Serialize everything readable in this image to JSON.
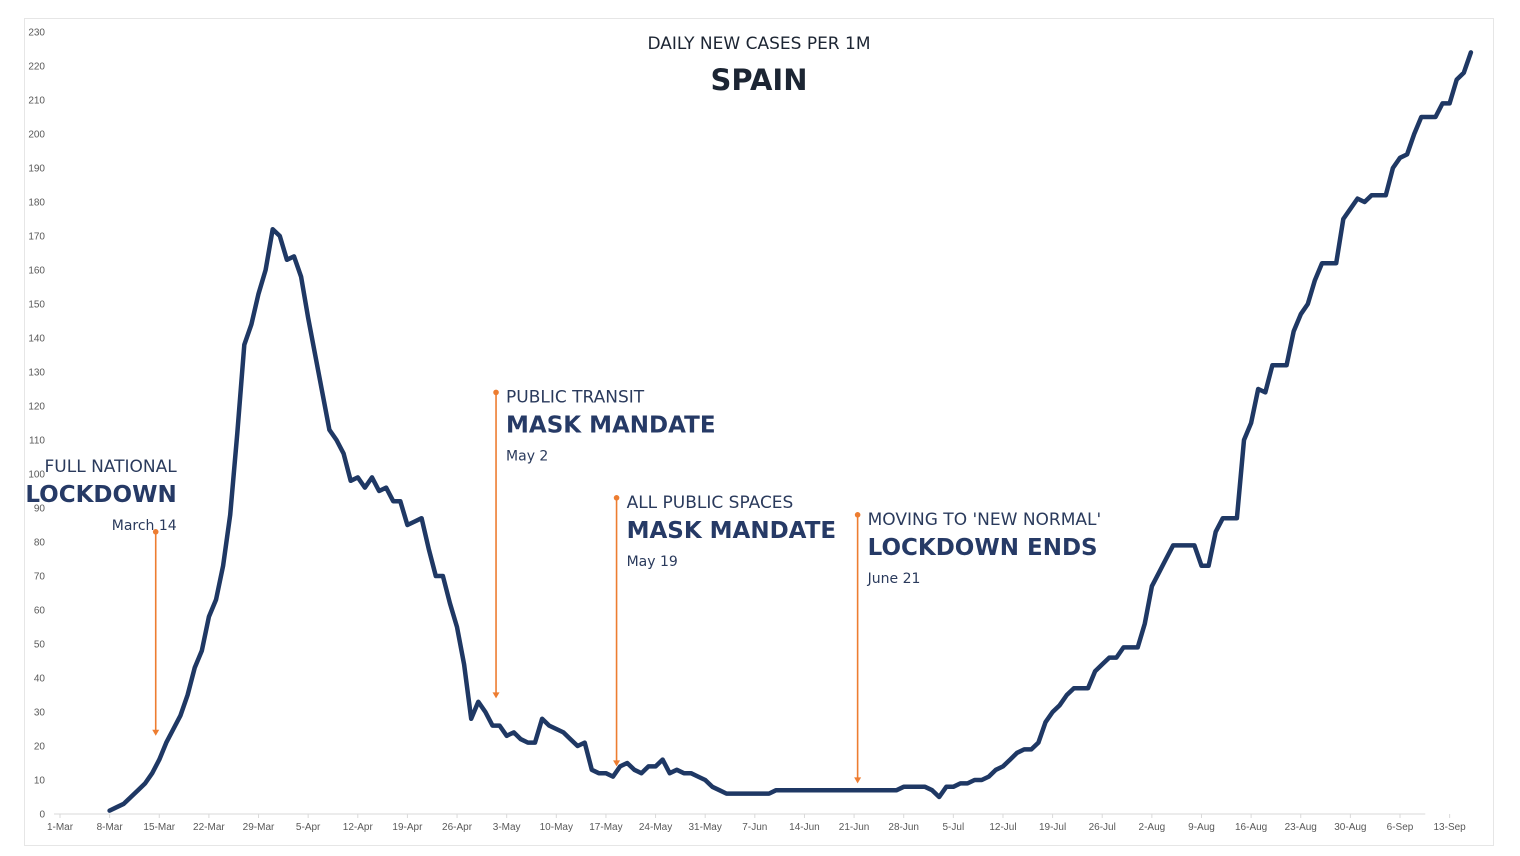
{
  "chart_data": {
    "type": "line",
    "title": "DAILY NEW CASES PER 1M",
    "subtitle": "SPAIN",
    "xlabel": "",
    "ylabel": "",
    "ylim": [
      0,
      230
    ],
    "yticks": [
      0,
      10,
      20,
      30,
      40,
      50,
      60,
      70,
      80,
      90,
      100,
      110,
      120,
      130,
      140,
      150,
      160,
      170,
      180,
      190,
      200,
      210,
      220,
      230
    ],
    "xticks": [
      "1-Mar",
      "8-Mar",
      "15-Mar",
      "22-Mar",
      "29-Mar",
      "5-Apr",
      "12-Apr",
      "19-Apr",
      "26-Apr",
      "3-May",
      "10-May",
      "17-May",
      "24-May",
      "31-May",
      "7-Jun",
      "14-Jun",
      "21-Jun",
      "28-Jun",
      "5-Jul",
      "12-Jul",
      "19-Jul",
      "26-Jul",
      "2-Aug",
      "9-Aug",
      "16-Aug",
      "23-Aug",
      "30-Aug",
      "6-Sep",
      "13-Sep"
    ],
    "x_start": "1-Mar",
    "grid": false,
    "line_color": "#1f3864",
    "annotation_color": "#ed7d31",
    "series": [
      {
        "values": [
          1,
          2,
          3,
          5,
          7,
          9,
          12,
          16,
          21,
          25,
          29,
          35,
          43,
          48,
          58,
          63,
          73,
          88,
          112,
          138,
          144,
          153,
          160,
          172,
          170,
          163,
          164,
          158,
          146,
          135,
          124,
          113,
          110,
          106,
          98,
          99,
          96,
          99,
          95,
          96,
          92,
          92,
          85,
          86,
          87,
          78,
          70,
          70,
          62,
          55,
          44,
          28,
          33,
          30,
          26,
          26,
          23,
          24,
          22,
          21,
          21,
          28,
          26,
          25,
          24,
          22,
          20,
          21,
          13,
          12,
          12,
          11,
          14,
          15,
          13,
          12,
          14,
          14,
          16,
          12,
          13,
          12,
          12,
          11,
          10,
          8,
          7,
          6,
          6,
          6,
          6,
          6,
          6,
          6,
          7,
          7,
          7,
          7,
          7,
          7,
          7,
          7,
          7,
          7,
          7,
          7,
          7,
          7,
          7,
          7,
          7,
          7,
          8,
          8,
          8,
          8,
          7,
          5,
          8,
          8,
          9,
          9,
          10,
          10,
          11,
          13,
          14,
          16,
          18,
          19,
          19,
          21,
          27,
          30,
          32,
          35,
          37,
          37,
          37,
          42,
          44,
          46,
          46,
          49,
          49,
          49,
          56,
          67,
          71,
          75,
          79,
          79,
          79,
          79,
          73,
          73,
          83,
          87,
          87,
          87,
          110,
          115,
          125,
          124,
          132,
          132,
          132,
          142,
          147,
          150,
          157,
          162,
          162,
          162,
          175,
          178,
          181,
          180,
          182,
          182,
          182,
          190,
          193,
          194,
          200,
          205,
          205,
          205,
          209,
          209,
          216,
          218,
          224
        ]
      }
    ],
    "annotations": [
      {
        "line1": "FULL NATIONAL",
        "line2": "LOCKDOWN",
        "date": "March 14",
        "day_index": 13.5,
        "arrow_from": 83,
        "arrow_to": 23,
        "text_align": "end"
      },
      {
        "line1": "PUBLIC TRANSIT",
        "line2": "MASK MANDATE",
        "date": "May 2",
        "day_index": 61.5,
        "arrow_from": 124,
        "arrow_to": 34,
        "text_align": "start"
      },
      {
        "line1": "ALL PUBLIC SPACES",
        "line2": "MASK MANDATE",
        "date": "May 19",
        "day_index": 78.5,
        "arrow_from": 93,
        "arrow_to": 14,
        "text_align": "start"
      },
      {
        "line1": "MOVING TO 'NEW NORMAL'",
        "line2": "LOCKDOWN ENDS",
        "date": "June 21",
        "day_index": 112.5,
        "arrow_from": 88,
        "arrow_to": 9,
        "text_align": "start"
      }
    ]
  }
}
